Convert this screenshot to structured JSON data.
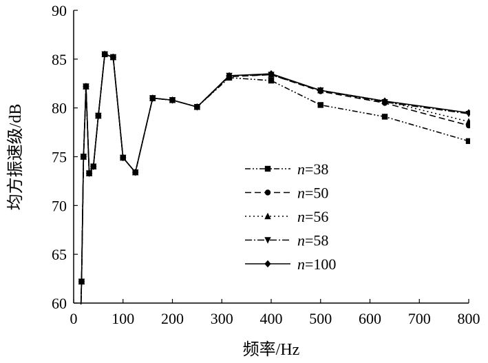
{
  "chart_data": {
    "type": "line",
    "title": "",
    "xlabel": "频率/Hz",
    "ylabel": "均方振速级/dB",
    "xlim": [
      0,
      800
    ],
    "ylim": [
      60,
      90
    ],
    "xticks": [
      0,
      100,
      200,
      300,
      400,
      500,
      600,
      700,
      800
    ],
    "yticks": [
      60,
      65,
      70,
      75,
      80,
      85,
      90
    ],
    "grid": false,
    "legend_position": "center-right",
    "series": [
      {
        "name": "n=38",
        "legend_prefix": "n",
        "legend_suffix": "=38",
        "marker": "square",
        "dash": "8,3,2,3,2,3",
        "x": [
          12.5,
          16,
          20,
          25,
          31.5,
          40,
          50,
          63,
          80,
          100,
          125,
          160,
          200,
          250,
          315,
          400,
          500,
          630,
          800
        ],
        "y": [
          55,
          62.2,
          75.0,
          82.2,
          73.3,
          74.0,
          79.2,
          85.5,
          85.2,
          74.9,
          73.4,
          81.0,
          80.8,
          80.1,
          83.1,
          82.8,
          80.3,
          79.1,
          76.6
        ]
      },
      {
        "name": "n=50",
        "legend_prefix": "n",
        "legend_suffix": "=50",
        "marker": "circle",
        "dash": "9,5",
        "x": [
          12.5,
          16,
          20,
          25,
          31.5,
          40,
          50,
          63,
          80,
          100,
          125,
          160,
          200,
          250,
          315,
          400,
          500,
          630,
          800
        ],
        "y": [
          55,
          62.2,
          75.0,
          82.2,
          73.3,
          74.0,
          79.2,
          85.5,
          85.2,
          74.9,
          73.4,
          81.0,
          80.8,
          80.1,
          83.2,
          83.4,
          81.7,
          80.5,
          78.2
        ]
      },
      {
        "name": "n=56",
        "legend_prefix": "n",
        "legend_suffix": "=56",
        "marker": "triangle-up",
        "dash": "2,4",
        "x": [
          12.5,
          16,
          20,
          25,
          31.5,
          40,
          50,
          63,
          80,
          100,
          125,
          160,
          200,
          250,
          315,
          400,
          500,
          630,
          800
        ],
        "y": [
          55,
          62.2,
          75.0,
          82.2,
          73.3,
          74.0,
          79.2,
          85.5,
          85.2,
          74.9,
          73.4,
          81.0,
          80.8,
          80.1,
          83.3,
          83.4,
          81.8,
          80.7,
          78.6
        ]
      },
      {
        "name": "n=58",
        "legend_prefix": "n",
        "legend_suffix": "=58",
        "marker": "triangle-down",
        "dash": "10,3,2,3",
        "x": [
          12.5,
          16,
          20,
          25,
          31.5,
          40,
          50,
          63,
          80,
          100,
          125,
          160,
          200,
          250,
          315,
          400,
          500,
          630,
          800
        ],
        "y": [
          55,
          62.2,
          75.0,
          82.2,
          73.3,
          74.0,
          79.2,
          85.5,
          85.2,
          74.9,
          73.4,
          81.0,
          80.8,
          80.1,
          83.3,
          83.4,
          81.8,
          80.6,
          79.4
        ]
      },
      {
        "name": "n=100",
        "legend_prefix": "n",
        "legend_suffix": "=100",
        "marker": "diamond",
        "dash": "",
        "x": [
          12.5,
          16,
          20,
          25,
          31.5,
          40,
          50,
          63,
          80,
          100,
          125,
          160,
          200,
          250,
          315,
          400,
          500,
          630,
          800
        ],
        "y": [
          55,
          62.2,
          75.0,
          82.2,
          73.3,
          74.0,
          79.2,
          85.5,
          85.2,
          74.9,
          73.4,
          81.0,
          80.8,
          80.1,
          83.3,
          83.5,
          81.8,
          80.7,
          79.5
        ]
      }
    ]
  }
}
